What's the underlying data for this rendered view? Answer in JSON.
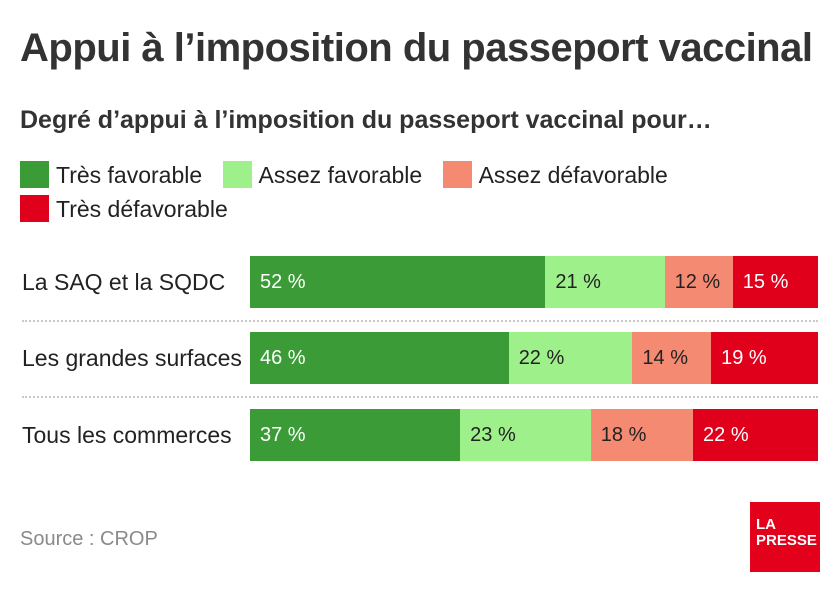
{
  "title": "Appui à l’imposition du passeport vaccinal",
  "subtitle": "Degré d’appui à l’imposition du passeport vaccinal pour…",
  "legend": [
    {
      "label": "Très favorable",
      "color": "#3b9b37"
    },
    {
      "label": "Assez favorable",
      "color": "#9ef08a"
    },
    {
      "label": "Assez défavorable",
      "color": "#f58a72"
    },
    {
      "label": "Très défavorable",
      "color": "#e0001b"
    }
  ],
  "chart_data": {
    "type": "bar",
    "orientation": "horizontal",
    "stacked": true,
    "unit": "%",
    "categories": [
      "La SAQ et la SQDC",
      "Les grandes surfaces",
      "Tous les commerces"
    ],
    "series": [
      {
        "name": "Très favorable",
        "values": [
          52,
          46,
          37
        ],
        "labels": [
          "52 %",
          "46 %",
          "37 %"
        ],
        "color": "#3b9b37",
        "text_color": "#ffffff"
      },
      {
        "name": "Assez favorable",
        "values": [
          21,
          22,
          23
        ],
        "labels": [
          "21 %",
          "22 %",
          "23 %"
        ],
        "color": "#9ef08a",
        "text_color": "#222222"
      },
      {
        "name": "Assez défavorable",
        "values": [
          12,
          14,
          18
        ],
        "labels": [
          "12 %",
          "14 %",
          "18 %"
        ],
        "color": "#f58a72",
        "text_color": "#222222"
      },
      {
        "name": "Très défavorable",
        "values": [
          15,
          19,
          22
        ],
        "labels": [
          "15 %",
          "19 %",
          "22 %"
        ],
        "color": "#e0001b",
        "text_color": "#ffffff"
      }
    ]
  },
  "source": "Source : CROP",
  "logo": {
    "line1": "LA",
    "line2": "PRESSE"
  }
}
